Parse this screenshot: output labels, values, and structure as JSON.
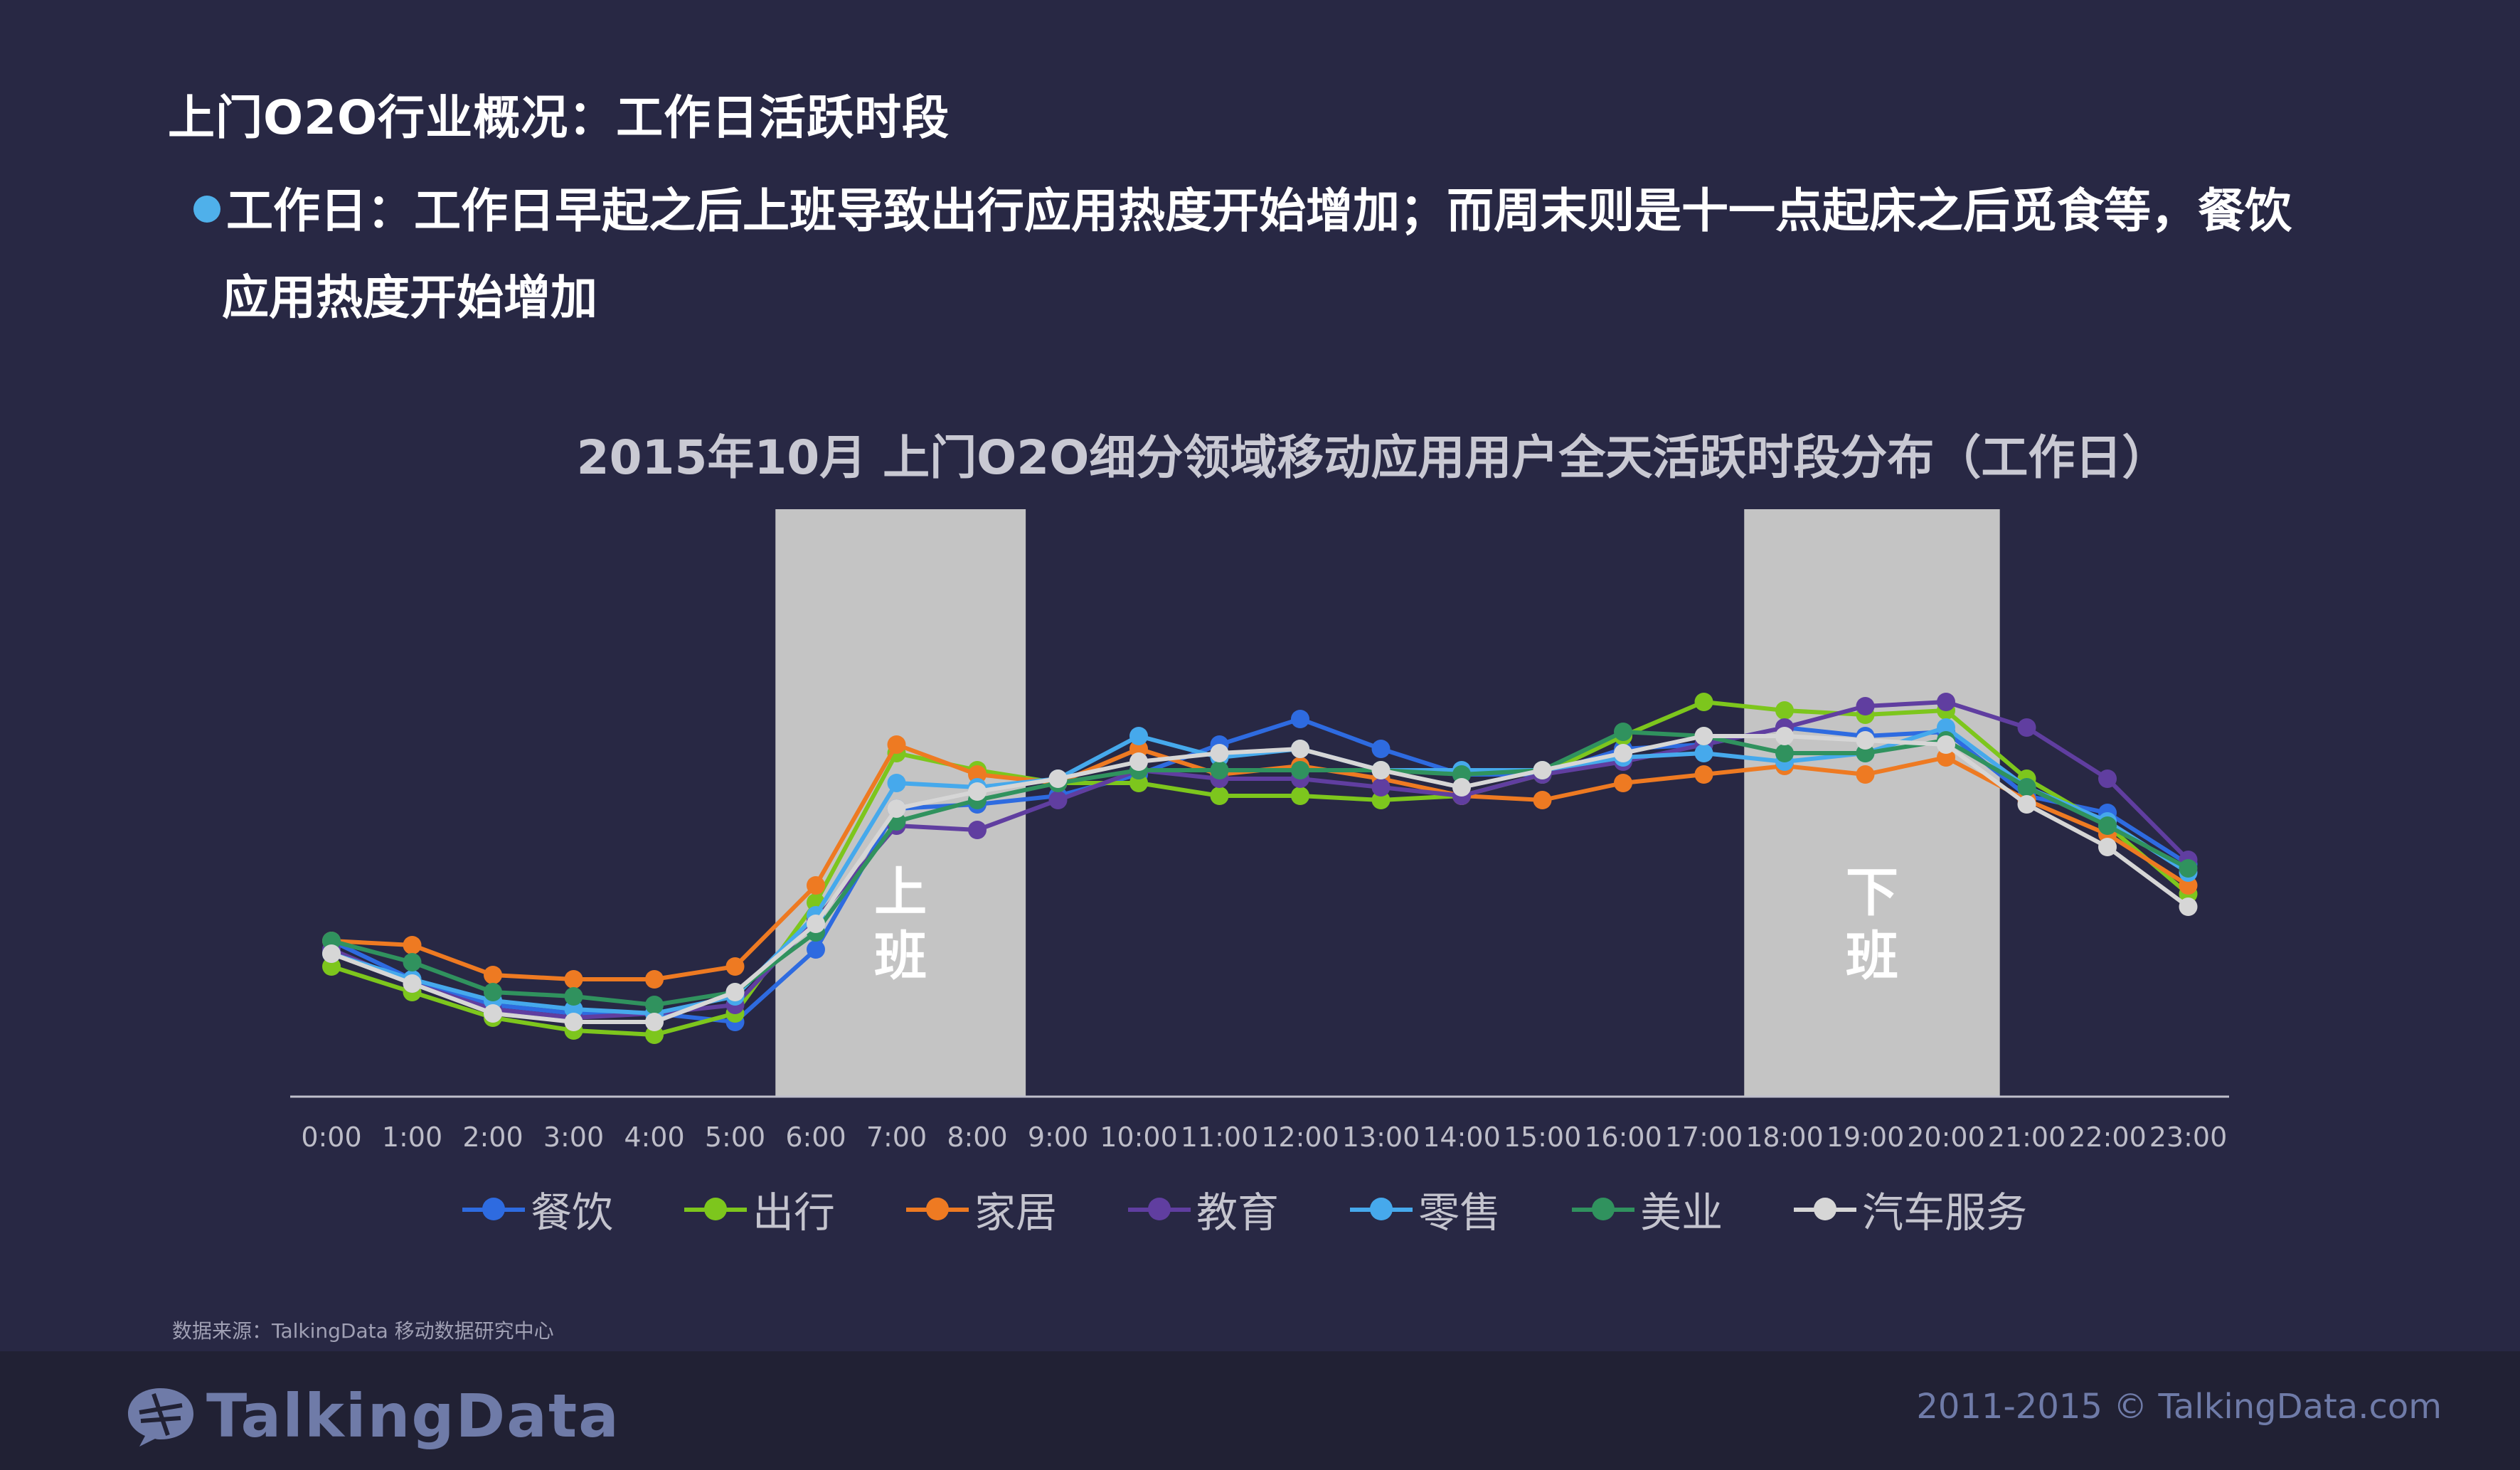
{
  "page": {
    "title": "上门O2O行业概况：工作日活跃时段",
    "bullet_line1": "工作日：工作日早起之后上班导致出行应用热度开始增加；而周末则是十一点起床之后觅食等，餐饮",
    "bullet_line2": "应用热度开始增加",
    "source": "数据来源：TalkingData 移动数据研究中心",
    "logo_text": "TalkingData",
    "copyright": "2011-2015 © TalkingData.com"
  },
  "chart_data": {
    "type": "line",
    "title": "2015年10月 上门O2O细分领域移动应用用户全天活跃时段分布（工作日）",
    "xlabel": "",
    "ylabel": "",
    "categories": [
      "0:00",
      "1:00",
      "2:00",
      "3:00",
      "4:00",
      "5:00",
      "6:00",
      "7:00",
      "8:00",
      "9:00",
      "10:00",
      "11:00",
      "12:00",
      "13:00",
      "14:00",
      "15:00",
      "16:00",
      "17:00",
      "18:00",
      "19:00",
      "20:00",
      "21:00",
      "22:00",
      "23:00"
    ],
    "ylim": [
      0,
      100
    ],
    "grid": false,
    "y_axis_visible": false,
    "legend_position": "bottom",
    "highlight_bands": [
      {
        "from": "5:30",
        "to": "8:36",
        "label_line1": "上",
        "label_line2": "班",
        "color": "#c4c4c4"
      },
      {
        "from": "17:30",
        "to": "20:40",
        "label_line1": "下",
        "label_line2": "班",
        "color": "#c4c4c4"
      }
    ],
    "series": [
      {
        "name": "餐饮",
        "color": "#2e6be0",
        "values": [
          34,
          25,
          19,
          17,
          17,
          15,
          32,
          65,
          66,
          68,
          73,
          80,
          86,
          79,
          73,
          73,
          79,
          80,
          84,
          82,
          83,
          68,
          64,
          52
        ]
      },
      {
        "name": "出行",
        "color": "#7dc61d",
        "values": [
          28,
          22,
          16,
          13,
          12,
          17,
          43,
          78,
          74,
          71,
          71,
          68,
          68,
          67,
          68,
          73,
          82,
          90,
          88,
          87,
          88,
          72,
          61,
          45
        ]
      },
      {
        "name": "家居",
        "color": "#ee7a22",
        "values": [
          34,
          33,
          26,
          25,
          25,
          28,
          47,
          80,
          73,
          71,
          79,
          73,
          75,
          72,
          68,
          67,
          71,
          73,
          75,
          73,
          77,
          67,
          59,
          47
        ]
      },
      {
        "name": "教育",
        "color": "#603ea0",
        "values": [
          32,
          24,
          18,
          16,
          17,
          19,
          39,
          61,
          60,
          67,
          74,
          72,
          72,
          70,
          68,
          73,
          76,
          80,
          84,
          89,
          90,
          84,
          72,
          53
        ]
      },
      {
        "name": "零售",
        "color": "#46a9ec",
        "values": [
          31,
          25,
          20,
          18,
          17,
          21,
          40,
          71,
          70,
          72,
          82,
          77,
          79,
          74,
          74,
          74,
          77,
          78,
          76,
          78,
          84,
          70,
          62,
          50
        ]
      },
      {
        "name": "美业",
        "color": "#30925e",
        "values": [
          34,
          29,
          22,
          21,
          19,
          22,
          36,
          62,
          67,
          71,
          74,
          74,
          74,
          74,
          73,
          74,
          83,
          82,
          78,
          78,
          81,
          70,
          61,
          51
        ]
      },
      {
        "name": "汽车服务",
        "color": "#d6d6d6",
        "values": [
          31,
          24,
          17,
          15,
          15,
          22,
          38,
          65,
          69,
          72,
          76,
          78,
          79,
          74,
          70,
          74,
          78,
          82,
          82,
          81,
          80,
          66,
          56,
          42
        ]
      }
    ]
  }
}
